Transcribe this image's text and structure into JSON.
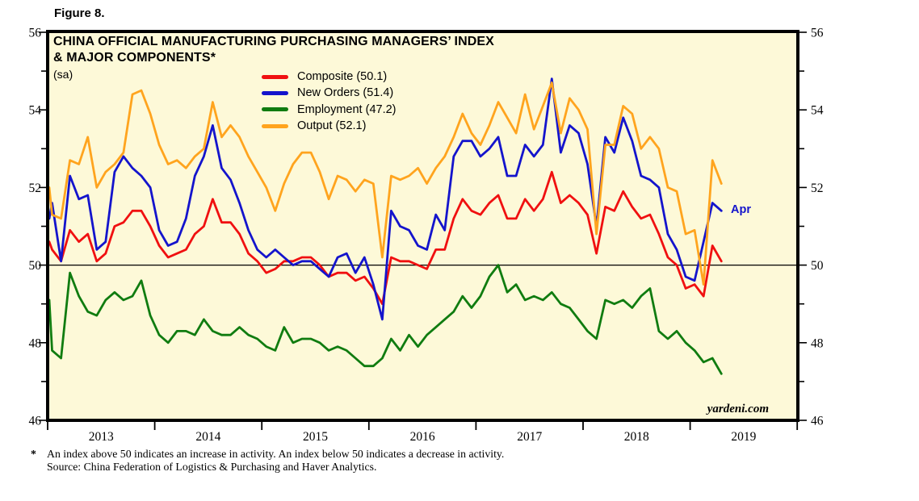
{
  "figure_label": "Figure 8.",
  "chart": {
    "title_line1": "CHINA OFFICIAL MANUFACTURING PURCHASING MANAGERS’ INDEX",
    "title_line2": "& MAJOR COMPONENTS*",
    "subtitle": "(sa)",
    "background": "#fdf9d8",
    "frame_color": "#000000",
    "watermark": "yardeni.com",
    "annotation": {
      "text": "Apr",
      "color": "#1414cc"
    },
    "legend": [
      {
        "label": "Composite (50.1)",
        "color": "#f01010"
      },
      {
        "label": "New Orders (51.4)",
        "color": "#1414cc"
      },
      {
        "label": "Employment (47.2)",
        "color": "#107c10"
      },
      {
        "label": "Output (52.1)",
        "color": "#ffa41e"
      }
    ],
    "y_axis": {
      "ticks": [
        46,
        48,
        50,
        52,
        54,
        56
      ],
      "range": [
        46,
        56
      ],
      "reference_line": 50
    },
    "x_axis": {
      "years": [
        "2013",
        "2014",
        "2015",
        "2016",
        "2017",
        "2018",
        "2019"
      ]
    }
  },
  "chart_data": {
    "type": "line",
    "title": "China Official Manufacturing Purchasing Managers’ Index & Major Components (sa)",
    "frequency": "monthly",
    "start": "Dec 2012",
    "end": "Apr 2019",
    "ylim": [
      46,
      56
    ],
    "grid": "reference line at 50 only",
    "legend_position": "top-center",
    "series": [
      {
        "name": "Composite",
        "latest": 50.1,
        "color": "#f01010",
        "values": [
          50.6,
          50.4,
          50.1,
          50.9,
          50.6,
          50.8,
          50.1,
          50.3,
          51.0,
          51.1,
          51.4,
          51.4,
          51.0,
          50.5,
          50.2,
          50.3,
          50.4,
          50.8,
          51.0,
          51.7,
          51.1,
          51.1,
          50.8,
          50.3,
          50.1,
          49.8,
          49.9,
          50.1,
          50.1,
          50.2,
          50.2,
          50.0,
          49.7,
          49.8,
          49.8,
          49.6,
          49.7,
          49.4,
          49.0,
          50.2,
          50.1,
          50.1,
          50.0,
          49.9,
          50.4,
          50.4,
          51.2,
          51.7,
          51.4,
          51.3,
          51.6,
          51.8,
          51.2,
          51.2,
          51.7,
          51.4,
          51.7,
          52.4,
          51.6,
          51.8,
          51.6,
          51.3,
          50.3,
          51.5,
          51.4,
          51.9,
          51.5,
          51.2,
          51.3,
          50.8,
          50.2,
          50.0,
          49.4,
          49.5,
          49.2,
          50.5,
          50.1
        ]
      },
      {
        "name": "New Orders",
        "latest": 51.4,
        "color": "#1414cc",
        "values": [
          51.2,
          51.6,
          50.1,
          52.3,
          51.7,
          51.8,
          50.4,
          50.6,
          52.4,
          52.8,
          52.5,
          52.3,
          52.0,
          50.9,
          50.5,
          50.6,
          51.2,
          52.3,
          52.8,
          53.6,
          52.5,
          52.2,
          51.6,
          50.9,
          50.4,
          50.2,
          50.4,
          50.2,
          50.0,
          50.1,
          50.1,
          49.9,
          49.7,
          50.2,
          50.3,
          49.8,
          50.2,
          49.5,
          48.6,
          51.4,
          51.0,
          50.9,
          50.5,
          50.4,
          51.3,
          50.9,
          52.8,
          53.2,
          53.2,
          52.8,
          53.0,
          53.3,
          52.3,
          52.3,
          53.1,
          52.8,
          53.1,
          54.8,
          52.9,
          53.6,
          53.4,
          52.6,
          51.0,
          53.3,
          52.9,
          53.8,
          53.2,
          52.3,
          52.2,
          52.0,
          50.8,
          50.4,
          49.7,
          49.6,
          50.6,
          51.6,
          51.4
        ]
      },
      {
        "name": "Employment",
        "latest": 47.2,
        "color": "#107c10",
        "values": [
          49.1,
          47.8,
          47.6,
          49.8,
          49.2,
          48.8,
          48.7,
          49.1,
          49.3,
          49.1,
          49.2,
          49.6,
          48.7,
          48.2,
          48.0,
          48.3,
          48.3,
          48.2,
          48.6,
          48.3,
          48.2,
          48.2,
          48.4,
          48.2,
          48.1,
          47.9,
          47.8,
          48.4,
          48.0,
          48.1,
          48.1,
          48.0,
          47.8,
          47.9,
          47.8,
          47.6,
          47.4,
          47.4,
          47.6,
          48.1,
          47.8,
          48.2,
          47.9,
          48.2,
          48.4,
          48.6,
          48.8,
          49.2,
          48.9,
          49.2,
          49.7,
          50.0,
          49.3,
          49.5,
          49.1,
          49.2,
          49.1,
          49.3,
          49.0,
          48.9,
          48.6,
          48.3,
          48.1,
          49.1,
          49.0,
          49.1,
          48.9,
          49.2,
          49.4,
          48.3,
          48.1,
          48.3,
          48.0,
          47.8,
          47.5,
          47.6,
          47.2
        ]
      },
      {
        "name": "Output",
        "latest": 52.1,
        "color": "#ffa41e",
        "values": [
          52.0,
          51.3,
          51.2,
          52.7,
          52.6,
          53.3,
          52.0,
          52.4,
          52.6,
          52.9,
          54.4,
          54.5,
          53.9,
          53.1,
          52.6,
          52.7,
          52.5,
          52.8,
          53.0,
          54.2,
          53.3,
          53.6,
          53.3,
          52.8,
          52.4,
          52.0,
          51.4,
          52.1,
          52.6,
          52.9,
          52.9,
          52.4,
          51.7,
          52.3,
          52.2,
          51.9,
          52.2,
          52.1,
          50.2,
          52.3,
          52.2,
          52.3,
          52.5,
          52.1,
          52.5,
          52.8,
          53.3,
          53.9,
          53.4,
          53.1,
          53.6,
          54.2,
          53.8,
          53.4,
          54.4,
          53.5,
          54.1,
          54.7,
          53.4,
          54.3,
          54.0,
          53.5,
          50.8,
          53.1,
          53.1,
          54.1,
          53.9,
          53.0,
          53.3,
          53.0,
          52.0,
          51.9,
          50.8,
          50.9,
          49.5,
          52.7,
          52.1
        ]
      }
    ]
  },
  "footnote": {
    "marker": "*",
    "line1": "An index above 50 indicates an increase in activity. An index below 50 indicates a decrease in activity.",
    "line2": "Source: China Federation of Logistics & Purchasing and Haver Analytics."
  }
}
